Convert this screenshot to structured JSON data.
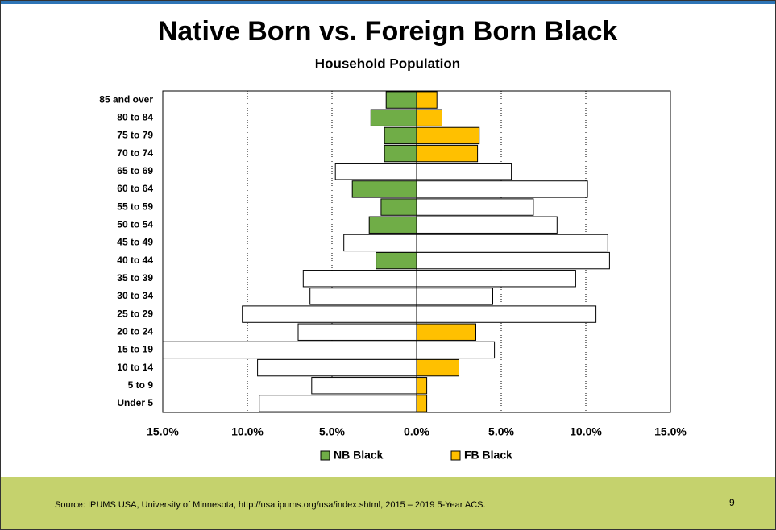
{
  "chart_data": {
    "type": "bar",
    "orientation": "horizontal",
    "title": "Native Born vs. Foreign Born Black",
    "subtitle": "Household Population",
    "categories": [
      "85 and over",
      "80 to 84",
      "75 to 79",
      "70 to 74",
      "65 to 69",
      "60 to 64",
      "55 to 59",
      "50 to 54",
      "45 to 49",
      "40 to 44",
      "35 to 39",
      "30 to 34",
      "25 to 29",
      "20 to 24",
      "15 to 19",
      "10 to 14",
      "5 to 9",
      "Under 5"
    ],
    "series": [
      {
        "name": "NB Black",
        "color": "#70ad47",
        "values": [
          -1.8,
          -2.7,
          -1.9,
          -1.9,
          -4.8,
          -3.8,
          -2.1,
          -2.8,
          -4.3,
          -2.4,
          -6.7,
          -6.3,
          -10.3,
          -7.0,
          -15.0,
          -9.4,
          -6.2,
          -9.3
        ],
        "colors": [
          "#70ad47",
          "#70ad47",
          "#70ad47",
          "#70ad47",
          "#ffffff",
          "#70ad47",
          "#70ad47",
          "#70ad47",
          "#ffffff",
          "#70ad47",
          "#ffffff",
          "#ffffff",
          "#ffffff",
          "#ffffff",
          "#ffffff",
          "#ffffff",
          "#ffffff",
          "#ffffff"
        ]
      },
      {
        "name": "FB Black",
        "color": "#ffc000",
        "values": [
          1.2,
          1.5,
          3.7,
          3.6,
          5.6,
          10.1,
          6.9,
          8.3,
          11.3,
          11.4,
          9.4,
          4.5,
          10.6,
          3.5,
          4.6,
          2.5,
          0.6,
          0.6
        ],
        "colors": [
          "#ffc000",
          "#ffc000",
          "#ffc000",
          "#ffc000",
          "#ffffff",
          "#ffffff",
          "#ffffff",
          "#ffffff",
          "#ffffff",
          "#ffffff",
          "#ffffff",
          "#ffffff",
          "#ffffff",
          "#ffc000",
          "#ffffff",
          "#ffc000",
          "#ffc000",
          "#ffc000"
        ]
      }
    ],
    "xlim": [
      -15,
      15
    ],
    "xticks": [
      {
        "value": -15,
        "label": "15.0%"
      },
      {
        "value": -10,
        "label": "10.0%"
      },
      {
        "value": -5,
        "label": "5.0%"
      },
      {
        "value": 0,
        "label": "0.0%"
      },
      {
        "value": 5,
        "label": "5.0%"
      },
      {
        "value": 10,
        "label": "10.0%"
      },
      {
        "value": 15,
        "label": "15.0%"
      }
    ],
    "grid": true,
    "legend": "bottom"
  },
  "source": "Source: IPUMS USA, University of Minnesota, http://usa.ipums.org/usa/index.shtml, 2015 – 2019 5-Year ACS.",
  "page": "9"
}
